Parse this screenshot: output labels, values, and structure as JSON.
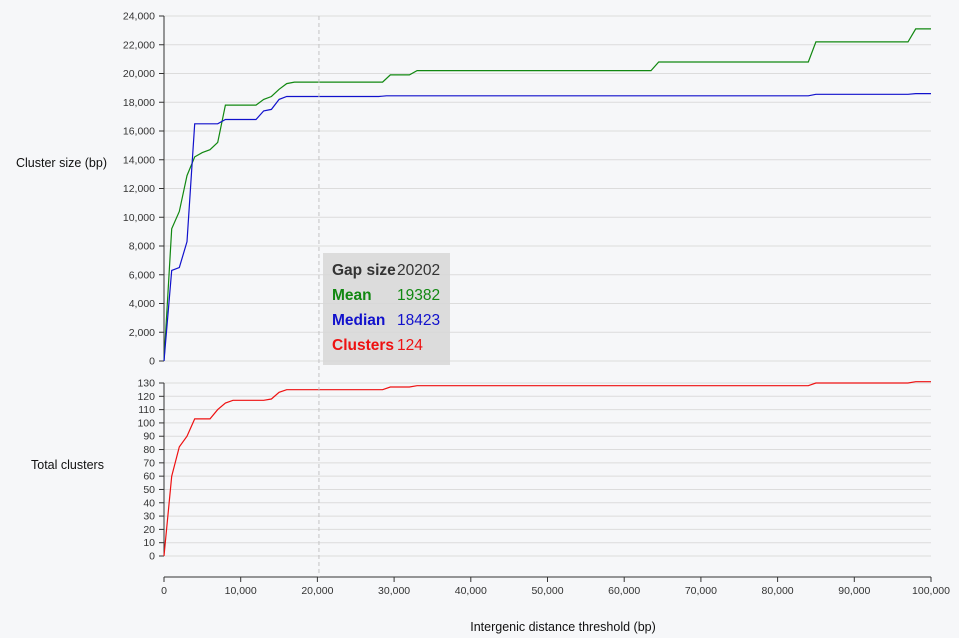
{
  "chart_data": [
    {
      "type": "line",
      "ylabel": "Cluster size (bp)",
      "xlabel": "",
      "xlim": [
        0,
        100000
      ],
      "ylim": [
        0,
        24000
      ],
      "yticks": [
        0,
        2000,
        4000,
        6000,
        8000,
        10000,
        12000,
        14000,
        16000,
        18000,
        20000,
        22000,
        24000
      ],
      "ytick_labels": [
        "0",
        "2,000",
        "4,000",
        "6,000",
        "8,000",
        "10,000",
        "12,000",
        "14,000",
        "16,000",
        "18,000",
        "20,000",
        "22,000",
        "24,000"
      ],
      "grid": true,
      "series": [
        {
          "name": "Mean",
          "color": "#118811",
          "points": [
            [
              0,
              0
            ],
            [
              1000,
              9200
            ],
            [
              2000,
              10400
            ],
            [
              3000,
              12900
            ],
            [
              4000,
              14200
            ],
            [
              5000,
              14500
            ],
            [
              6000,
              14700
            ],
            [
              7000,
              15200
            ],
            [
              8000,
              17800
            ],
            [
              12000,
              17800
            ],
            [
              13000,
              18200
            ],
            [
              14000,
              18400
            ],
            [
              15000,
              18900
            ],
            [
              16000,
              19300
            ],
            [
              17000,
              19400
            ],
            [
              28500,
              19400
            ],
            [
              29500,
              19900
            ],
            [
              32000,
              19900
            ],
            [
              33000,
              20200
            ],
            [
              63500,
              20200
            ],
            [
              64500,
              20800
            ],
            [
              84000,
              20800
            ],
            [
              85000,
              22200
            ],
            [
              97000,
              22200
            ],
            [
              98000,
              23100
            ],
            [
              100000,
              23100
            ]
          ]
        },
        {
          "name": "Median",
          "color": "#1111cc",
          "points": [
            [
              0,
              0
            ],
            [
              1000,
              6300
            ],
            [
              2000,
              6500
            ],
            [
              3000,
              8300
            ],
            [
              4000,
              16500
            ],
            [
              7000,
              16500
            ],
            [
              8000,
              16800
            ],
            [
              12000,
              16800
            ],
            [
              13000,
              17400
            ],
            [
              14000,
              17500
            ],
            [
              15000,
              18200
            ],
            [
              16000,
              18400
            ],
            [
              28000,
              18400
            ],
            [
              29000,
              18450
            ],
            [
              33000,
              18450
            ],
            [
              84000,
              18450
            ],
            [
              85000,
              18550
            ],
            [
              97000,
              18550
            ],
            [
              98000,
              18600
            ],
            [
              100000,
              18600
            ]
          ]
        }
      ]
    },
    {
      "type": "line",
      "ylabel": "Total clusters",
      "xlabel": "Intergenic distance threshold (bp)",
      "xlim": [
        0,
        100000
      ],
      "ylim": [
        0,
        130
      ],
      "yticks": [
        0,
        10,
        20,
        30,
        40,
        50,
        60,
        70,
        80,
        90,
        100,
        110,
        120,
        130
      ],
      "xticks": [
        0,
        10000,
        20000,
        30000,
        40000,
        50000,
        60000,
        70000,
        80000,
        90000,
        100000
      ],
      "xtick_labels": [
        "0",
        "10,000",
        "20,000",
        "30,000",
        "40,000",
        "50,000",
        "60,000",
        "70,000",
        "80,000",
        "90,000",
        "100,000"
      ],
      "grid": true,
      "series": [
        {
          "name": "Clusters",
          "color": "#ee1111",
          "points": [
            [
              0,
              0
            ],
            [
              1000,
              60
            ],
            [
              2000,
              82
            ],
            [
              3000,
              90
            ],
            [
              4000,
              103
            ],
            [
              6000,
              103
            ],
            [
              7000,
              110
            ],
            [
              8000,
              115
            ],
            [
              9000,
              117
            ],
            [
              13000,
              117
            ],
            [
              14000,
              118
            ],
            [
              15000,
              123
            ],
            [
              16000,
              125
            ],
            [
              28500,
              125
            ],
            [
              29500,
              127
            ],
            [
              32000,
              127
            ],
            [
              33000,
              128
            ],
            [
              84000,
              128
            ],
            [
              85000,
              130
            ],
            [
              97000,
              130
            ],
            [
              98000,
              131
            ],
            [
              100000,
              131
            ]
          ]
        }
      ]
    }
  ],
  "hover": {
    "x": 20202,
    "rows": [
      {
        "key": "Gap size",
        "value": "20202",
        "color": "#333333"
      },
      {
        "key": "Mean",
        "value": "19382",
        "color": "#118811"
      },
      {
        "key": "Median",
        "value": "18423",
        "color": "#1111cc"
      },
      {
        "key": "Clusters",
        "value": "124",
        "color": "#ee1111"
      }
    ]
  }
}
